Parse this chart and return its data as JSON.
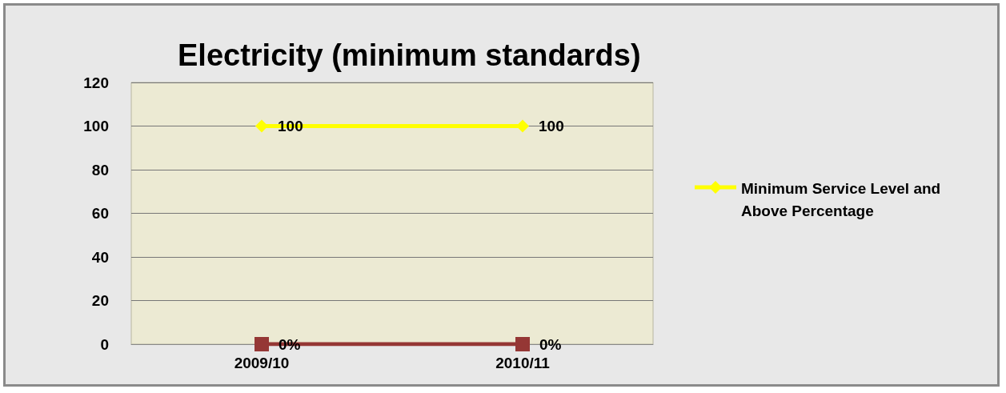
{
  "chart_data": {
    "type": "line",
    "title": "Electricity (minimum standards)",
    "categories": [
      "2009/10",
      "2010/11"
    ],
    "series": [
      {
        "name": "Minimum Service Level and Above Percentage",
        "color": "#ffff00",
        "values": [
          100,
          100
        ],
        "marker": "diamond",
        "value_labels": [
          "100",
          "100"
        ]
      },
      {
        "color": "#953735",
        "values": [
          0,
          0
        ],
        "marker": "square",
        "value_labels": [
          "0%",
          "0%"
        ]
      }
    ],
    "ylim": [
      0,
      120
    ],
    "yticks": [
      0,
      20,
      40,
      60,
      80,
      100,
      120
    ],
    "grid": "y",
    "legend": "right"
  }
}
